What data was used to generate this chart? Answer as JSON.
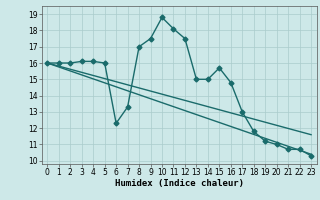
{
  "title": "",
  "xlabel": "Humidex (Indice chaleur)",
  "ylabel": "",
  "bg_color": "#cde8e8",
  "grid_color": "#b0d0d0",
  "line_color": "#1a6b6b",
  "xlim": [
    -0.5,
    23.5
  ],
  "ylim": [
    9.8,
    19.5
  ],
  "yticks": [
    10,
    11,
    12,
    13,
    14,
    15,
    16,
    17,
    18,
    19
  ],
  "xticks": [
    0,
    1,
    2,
    3,
    4,
    5,
    6,
    7,
    8,
    9,
    10,
    11,
    12,
    13,
    14,
    15,
    16,
    17,
    18,
    19,
    20,
    21,
    22,
    23
  ],
  "curve_x": [
    0,
    1,
    2,
    3,
    4,
    5,
    6,
    7,
    8,
    9,
    10,
    11,
    12,
    13,
    14,
    15,
    16,
    17,
    18,
    19,
    20,
    21,
    22,
    23
  ],
  "curve_y": [
    16.0,
    16.0,
    16.0,
    16.1,
    16.1,
    16.0,
    12.3,
    13.3,
    17.0,
    17.5,
    18.8,
    18.1,
    17.5,
    15.0,
    15.0,
    15.7,
    14.8,
    13.0,
    11.8,
    11.2,
    11.0,
    10.7,
    10.7,
    10.3
  ],
  "trend_x": [
    0,
    23
  ],
  "trend_y": [
    16.0,
    10.4
  ],
  "trend2_x": [
    0,
    23
  ],
  "trend2_y": [
    16.0,
    11.6
  ],
  "marker_size": 2.5,
  "line_width": 1.0,
  "tick_fontsize": 5.5,
  "xlabel_fontsize": 6.5
}
